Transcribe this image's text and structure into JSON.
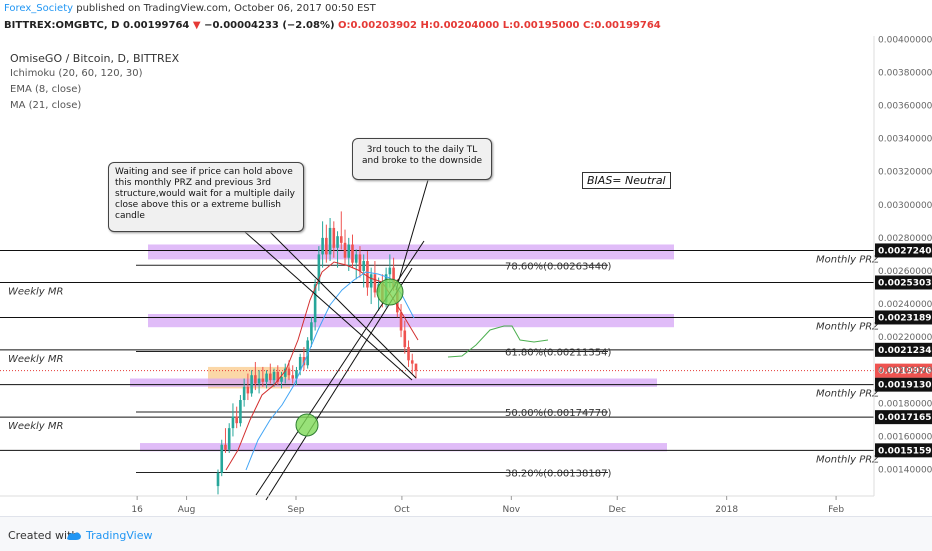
{
  "header": {
    "user": "Forex_Society",
    "published": "published on TradingView.com, October 06, 2017 00:50 EST",
    "symbol": "BITTREX:OMGBTC, D",
    "price": "0.00199764",
    "change": "−0.00004233 (−2.08%)",
    "ohlc": "O:0.00203902 H:0.00204000 L:0.00195000 C:0.00199764"
  },
  "indicators": [
    "OmiseGO / Bitcoin, D, BITTREX",
    "Ichimoku (20, 60, 120, 30)",
    "EMA (8, close)",
    "MA (21, close)"
  ],
  "annotations": {
    "left_note": "Waiting and see if price can hold above this monthly PRZ and previous 3rd structure,would wait for a multiple daily close above this or a extreme bullish candle",
    "right_note": "3rd touch to the daily TL and broke to the downside",
    "bias": "BIAS= Neutral"
  },
  "footer": {
    "created": "Created with",
    "brand": "TradingView"
  },
  "colors": {
    "prz": "#d6a6f5",
    "structure": "#f9c98a",
    "up": "#26a69a",
    "down": "#ef5350",
    "ema": "#d32f2f",
    "ma": "#42a5f5",
    "accent": "#2196f3"
  },
  "chart_data": {
    "type": "line",
    "y_axis_ticks": [
      "0.00400000",
      "0.00380000",
      "0.00360000",
      "0.00340000",
      "0.00320000",
      "0.00300000",
      "0.00280000",
      "0.00260000",
      "0.00240000",
      "0.00220000",
      "0.00200000",
      "0.00180000",
      "0.00160000",
      "0.00140000"
    ],
    "ylim": [
      0.00124,
      0.00402
    ],
    "x_ticks": [
      {
        "label": "16",
        "day": -45
      },
      {
        "label": "Aug",
        "day": -31
      },
      {
        "label": "Sep",
        "day": 0
      },
      {
        "label": "Oct",
        "day": 30
      },
      {
        "label": "Nov",
        "day": 61
      },
      {
        "label": "Dec",
        "day": 91
      },
      {
        "label": "2018",
        "day": 122
      },
      {
        "label": "Feb",
        "day": 153
      }
    ],
    "fib_levels": [
      {
        "label": "78.60%(0.00263440)",
        "value": 0.0026344
      },
      {
        "label": "61.80%(0.00211354)",
        "value": 0.00211354
      },
      {
        "label": "50.00%(0.00174770)",
        "value": 0.0017477
      },
      {
        "label": "38.20%(0.00138187)",
        "value": 0.00138187
      }
    ],
    "horizontal_lines": [
      {
        "label": "0.00272404",
        "value": 0.00272404,
        "annotation": "Monthly PRZ"
      },
      {
        "label": "0.00253038",
        "value": 0.00253038,
        "annotation": "Weekly MR"
      },
      {
        "label": "0.00231893",
        "value": 0.00231893,
        "annotation": "Monthly PRZ"
      },
      {
        "label": "0.00212347",
        "value": 0.00212347,
        "annotation": "Weekly MR"
      },
      {
        "label": "0.00191307",
        "value": 0.00191307,
        "annotation": "Monthly PRZ"
      },
      {
        "label": "0.00171655",
        "value": 0.00171655,
        "annotation": "Weekly MR"
      },
      {
        "label": "0.00151596",
        "value": 0.00151596,
        "annotation": "Monthly PRZ"
      }
    ],
    "current_price": {
      "label": "0.00199764",
      "value": 0.00199764
    },
    "prz_zones": [
      [
        0.00267,
        0.00276
      ],
      [
        0.00226,
        0.00234
      ],
      [
        0.0019,
        0.00195
      ],
      [
        0.00151,
        0.00156
      ]
    ],
    "structure_zone": [
      0.00189,
      0.00202
    ],
    "candles": [
      [
        0.0013,
        0.0014,
        0.00125,
        0.00138
      ],
      [
        0.00138,
        0.00158,
        0.00136,
        0.00155
      ],
      [
        0.00155,
        0.00165,
        0.0015,
        0.00152
      ],
      [
        0.00152,
        0.00168,
        0.0015,
        0.00165
      ],
      [
        0.00165,
        0.0018,
        0.0016,
        0.00172
      ],
      [
        0.00172,
        0.00178,
        0.00165,
        0.00168
      ],
      [
        0.00168,
        0.00185,
        0.00166,
        0.00182
      ],
      [
        0.00182,
        0.00195,
        0.00178,
        0.0019
      ],
      [
        0.0019,
        0.00198,
        0.00182,
        0.00186
      ],
      [
        0.00186,
        0.002,
        0.00184,
        0.00197
      ],
      [
        0.00197,
        0.00205,
        0.00188,
        0.00192
      ],
      [
        0.00192,
        0.002,
        0.00186,
        0.00195
      ],
      [
        0.00195,
        0.00202,
        0.0019,
        0.00193
      ],
      [
        0.00193,
        0.002,
        0.00189,
        0.00198
      ],
      [
        0.00198,
        0.00204,
        0.00192,
        0.00194
      ],
      [
        0.00194,
        0.00201,
        0.0019,
        0.00199
      ],
      [
        0.00199,
        0.00203,
        0.00191,
        0.00193
      ],
      [
        0.00193,
        0.00199,
        0.00189,
        0.00196
      ],
      [
        0.00196,
        0.00204,
        0.00192,
        0.00201
      ],
      [
        0.00201,
        0.00206,
        0.00194,
        0.00197
      ],
      [
        0.00197,
        0.00203,
        0.00192,
        0.00195
      ],
      [
        0.00195,
        0.00202,
        0.00191,
        0.002
      ],
      [
        0.002,
        0.0021,
        0.00197,
        0.00208
      ],
      [
        0.00208,
        0.00214,
        0.002,
        0.00203
      ],
      [
        0.00203,
        0.0022,
        0.00201,
        0.00218
      ],
      [
        0.00218,
        0.00232,
        0.00214,
        0.00229
      ],
      [
        0.00229,
        0.00255,
        0.00224,
        0.00252
      ],
      [
        0.00252,
        0.00275,
        0.00248,
        0.0027
      ],
      [
        0.0027,
        0.0029,
        0.00262,
        0.0028
      ],
      [
        0.0028,
        0.00288,
        0.00265,
        0.0027
      ],
      [
        0.0027,
        0.00292,
        0.00266,
        0.00286
      ],
      [
        0.00286,
        0.0029,
        0.00268,
        0.00274
      ],
      [
        0.00274,
        0.00284,
        0.00262,
        0.00281
      ],
      [
        0.00281,
        0.00296,
        0.00273,
        0.00277
      ],
      [
        0.00277,
        0.00285,
        0.00264,
        0.00268
      ],
      [
        0.00268,
        0.0028,
        0.0026,
        0.00276
      ],
      [
        0.00276,
        0.00282,
        0.00262,
        0.00265
      ],
      [
        0.00265,
        0.00273,
        0.00255,
        0.0027
      ],
      [
        0.0027,
        0.00275,
        0.00256,
        0.0026
      ],
      [
        0.0026,
        0.0027,
        0.0025,
        0.00266
      ],
      [
        0.00266,
        0.00272,
        0.00245,
        0.0025
      ],
      [
        0.0025,
        0.00262,
        0.0024,
        0.00258
      ],
      [
        0.00258,
        0.00266,
        0.00244,
        0.00247
      ],
      [
        0.00247,
        0.00256,
        0.00236,
        0.00252
      ],
      [
        0.00252,
        0.00258,
        0.00238,
        0.00241
      ],
      [
        0.00241,
        0.00262,
        0.00238,
        0.00258
      ],
      [
        0.00258,
        0.0027,
        0.0025,
        0.00262
      ],
      [
        0.00262,
        0.00268,
        0.00248,
        0.0025
      ],
      [
        0.0025,
        0.00255,
        0.00232,
        0.00235
      ],
      [
        0.00235,
        0.0024,
        0.0022,
        0.00224
      ],
      [
        0.00224,
        0.0023,
        0.0021,
        0.00214
      ],
      [
        0.00214,
        0.00218,
        0.00202,
        0.00206
      ],
      [
        0.00206,
        0.0021,
        0.00198,
        0.00204
      ],
      [
        0.00204,
        0.00204,
        0.00195,
        0.00199764
      ]
    ]
  }
}
